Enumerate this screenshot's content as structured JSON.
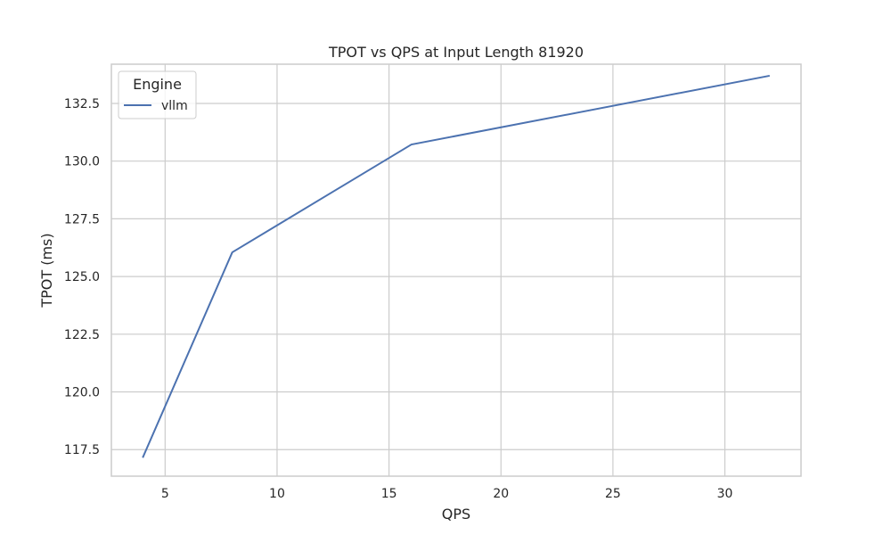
{
  "chart_data": {
    "type": "line",
    "title": "TPOT vs QPS at Input Length 81920",
    "xlabel": "QPS",
    "ylabel": "TPOT (ms)",
    "xlim": [
      2.6,
      33.4
    ],
    "ylim": [
      116.35,
      134.2
    ],
    "xticks": [
      5,
      10,
      15,
      20,
      25,
      30
    ],
    "xtick_labels": [
      "5",
      "10",
      "15",
      "20",
      "25",
      "30"
    ],
    "yticks": [
      117.5,
      120.0,
      122.5,
      125.0,
      127.5,
      130.0,
      132.5
    ],
    "ytick_labels": [
      "117.5",
      "120.0",
      "122.5",
      "125.0",
      "127.5",
      "130.0",
      "132.5"
    ],
    "grid": true,
    "legend": {
      "title": "Engine",
      "placement": "top-left"
    },
    "series": [
      {
        "name": "vllm",
        "color": "#4c72b0",
        "x": [
          4,
          8,
          16,
          32
        ],
        "y": [
          117.15,
          126.05,
          130.72,
          133.7
        ]
      }
    ]
  }
}
